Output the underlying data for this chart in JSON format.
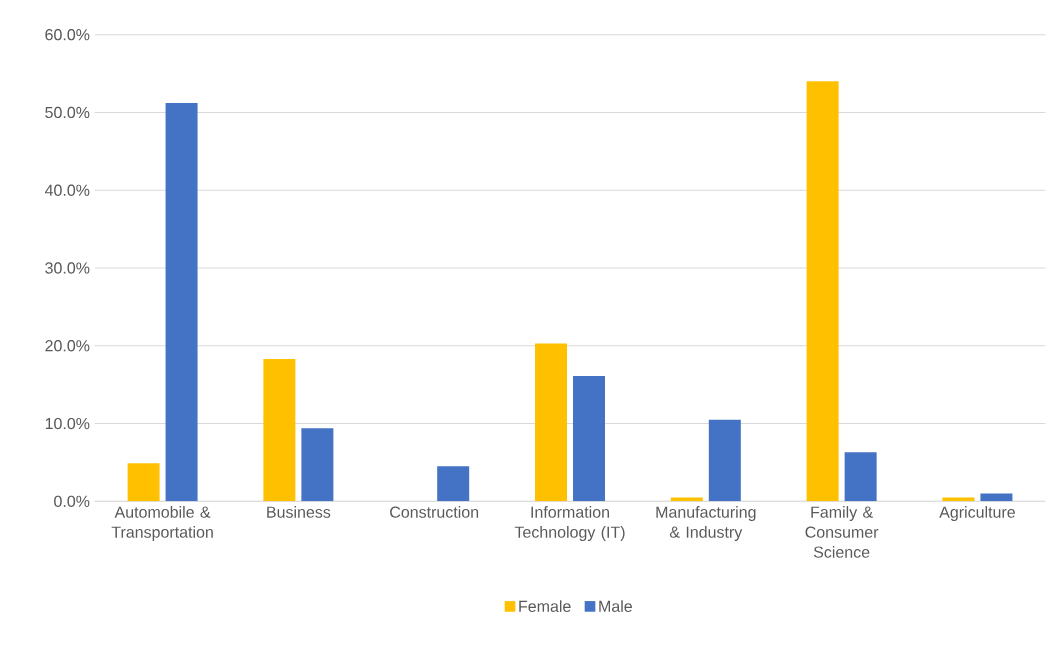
{
  "chart_data": {
    "type": "bar",
    "categories": [
      "Automobile & Transportation",
      "Business",
      "Construction",
      "Information Technology (IT)",
      "Manufacturing & Industry",
      "Family & Consumer Science",
      "Agriculture"
    ],
    "series": [
      {
        "name": "Female",
        "color": "#ffc000",
        "values": [
          4.9,
          18.3,
          0,
          20.3,
          0.5,
          54.0,
          0.5
        ]
      },
      {
        "name": "Male",
        "color": "#4472c4",
        "values": [
          51.2,
          9.4,
          4.5,
          16.1,
          10.5,
          6.3,
          1.0
        ]
      }
    ],
    "ylim": [
      0,
      60
    ],
    "yticks": [
      {
        "value": 0,
        "label": "0.0%"
      },
      {
        "value": 10,
        "label": "10.0%"
      },
      {
        "value": 20,
        "label": "20.0%"
      },
      {
        "value": 30,
        "label": "30.0%"
      },
      {
        "value": 40,
        "label": "40.0%"
      },
      {
        "value": 50,
        "label": "50.0%"
      },
      {
        "value": 60,
        "label": "60.0%"
      }
    ],
    "grid": "y",
    "legend": "bottom"
  }
}
